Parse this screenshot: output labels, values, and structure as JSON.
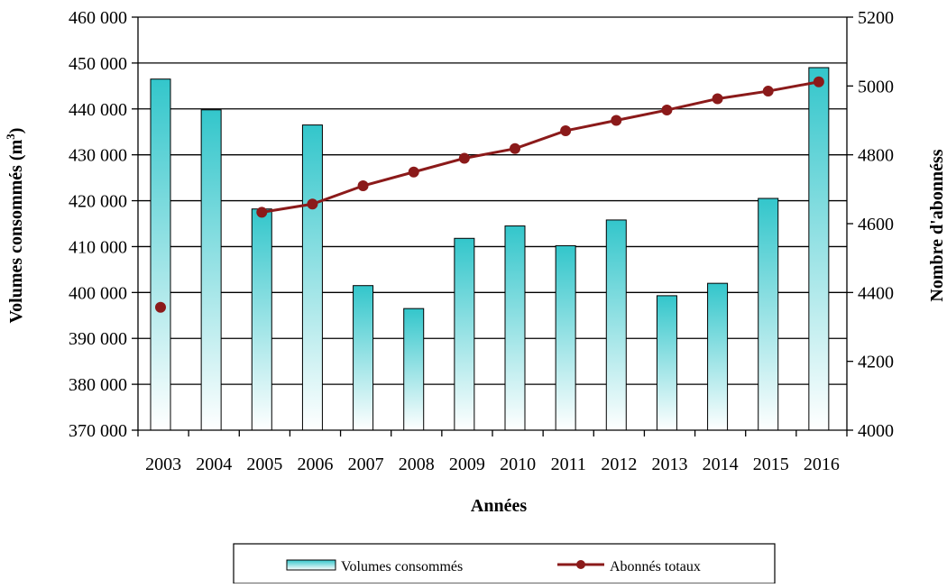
{
  "chart_data": {
    "type": "bar+line",
    "categories": [
      "2003",
      "2004",
      "2005",
      "2006",
      "2007",
      "2008",
      "2009",
      "2010",
      "2011",
      "2012",
      "2013",
      "2014",
      "2015",
      "2016"
    ],
    "series": [
      {
        "name": "Volumes consommés",
        "type": "bar",
        "axis": "left",
        "values": [
          446500,
          439800,
          418200,
          436500,
          401500,
          396500,
          411800,
          414500,
          410200,
          415800,
          399300,
          402000,
          420500,
          449000
        ],
        "color_top": "#33c6cb",
        "color_bottom": "#ffffff"
      },
      {
        "name": "Abonnés totaux",
        "type": "line",
        "axis": "right",
        "values": [
          4357,
          null,
          4633,
          4657,
          4710,
          4750,
          4790,
          4818,
          4870,
          4900,
          4930,
          4963,
          4985,
          5012
        ],
        "color": "#8b1a1a"
      }
    ],
    "xlabel": "Années",
    "ylabel_left_text": "Volumes consommés (m",
    "ylabel_left_sup": "3",
    "ylabel_left_close": ")",
    "ylabel_right": "Nombre  d'abonnéss",
    "ylim_left": [
      370000,
      460000
    ],
    "ylim_right": [
      4000,
      5200
    ],
    "yticks_left": [
      370000,
      380000,
      390000,
      400000,
      410000,
      420000,
      430000,
      440000,
      450000,
      460000
    ],
    "yticks_left_labels": [
      "370 000",
      "380 000",
      "390 000",
      "400 000",
      "410 000",
      "420 000",
      "430 000",
      "440 000",
      "450 000",
      "460 000"
    ],
    "yticks_right": [
      4000,
      4200,
      4400,
      4600,
      4800,
      5000,
      5200
    ],
    "yticks_right_labels": [
      "4000",
      "4200",
      "4400",
      "4600",
      "4800",
      "5000",
      "5200"
    ],
    "grid": true,
    "legend_position": "bottom"
  }
}
